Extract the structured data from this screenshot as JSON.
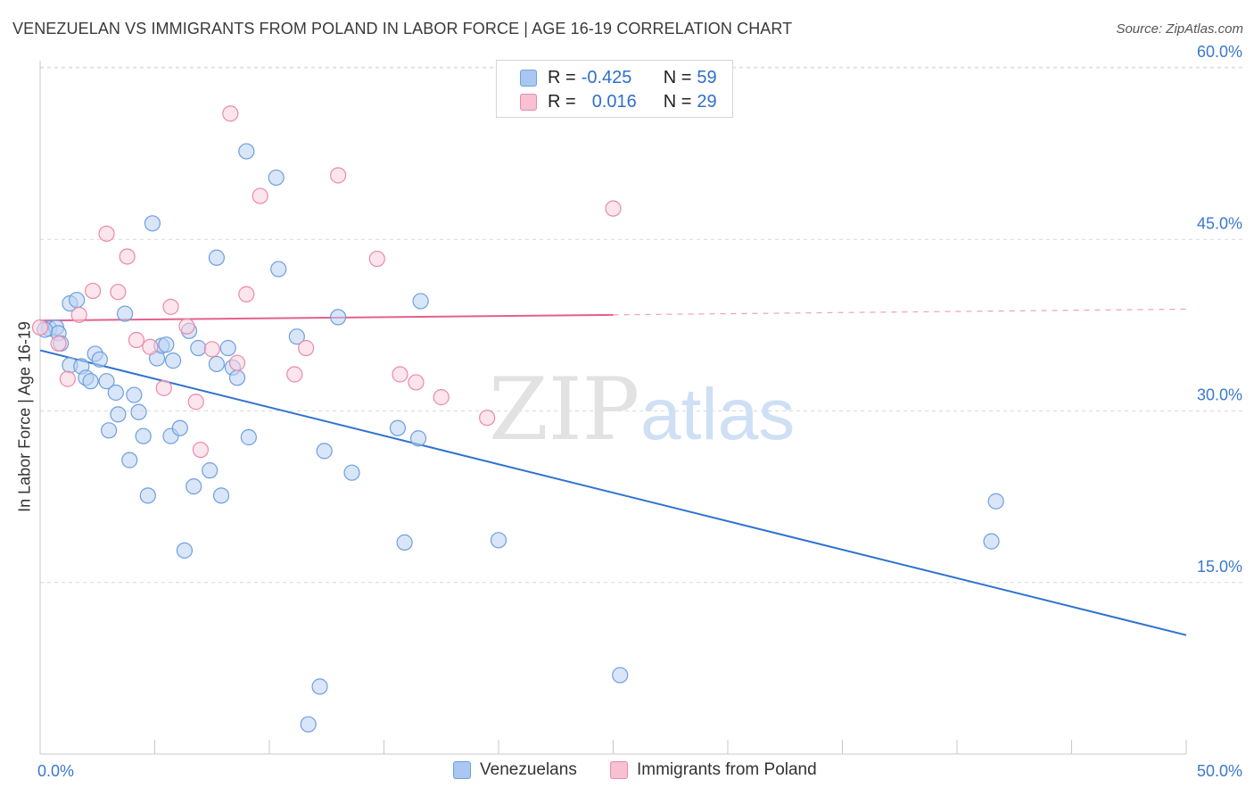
{
  "title": "VENEZUELAN VS IMMIGRANTS FROM POLAND IN LABOR FORCE | AGE 16-19 CORRELATION CHART",
  "source": "Source: ZipAtlas.com",
  "watermark": {
    "zip": "ZIP",
    "atlas": "atlas"
  },
  "legend": {
    "rows": [
      {
        "r_label": "R = ",
        "r_value": "-0.425",
        "n_label": "N = ",
        "n_value": "59",
        "color": "#a9c7f0",
        "border": "#6d9fe0"
      },
      {
        "r_label": "R = ",
        "r_value": "0.016",
        "n_label": "N = ",
        "n_value": "29",
        "color": "#f7c1d2",
        "border": "#e98aa9"
      }
    ]
  },
  "chart_data": {
    "type": "scatter",
    "title": "VENEZUELAN VS IMMIGRANTS FROM POLAND IN LABOR FORCE | AGE 16-19 CORRELATION CHART",
    "xlabel": "",
    "ylabel": "In Labor Force | Age 16-19",
    "xlim": [
      0,
      50
    ],
    "ylim": [
      0,
      60
    ],
    "x_tick_labels": [
      "0.0%",
      "50.0%"
    ],
    "y_tick_labels": [
      "15.0%",
      "30.0%",
      "45.0%",
      "60.0%"
    ],
    "y_ticks": [
      15,
      30,
      45,
      60
    ],
    "grid": true,
    "legend_position": "top-center",
    "series": [
      {
        "name": "Venezuelans",
        "color": "#6d9fe0",
        "fill": "#b9d2f3",
        "trend": {
          "x": [
            0,
            50
          ],
          "y": [
            35.3,
            10.4
          ],
          "dashed_from": null,
          "color": "#2f72d0"
        },
        "points": [
          [
            0.4,
            37.2
          ],
          [
            0.7,
            37.3
          ],
          [
            0.8,
            36.8
          ],
          [
            0.9,
            35.9
          ],
          [
            1.3,
            39.4
          ],
          [
            1.6,
            39.7
          ],
          [
            1.3,
            34.0
          ],
          [
            1.8,
            33.9
          ],
          [
            2.0,
            32.9
          ],
          [
            2.2,
            32.6
          ],
          [
            2.4,
            35.0
          ],
          [
            2.6,
            34.5
          ],
          [
            2.9,
            32.6
          ],
          [
            3.0,
            28.3
          ],
          [
            3.3,
            31.6
          ],
          [
            3.4,
            29.7
          ],
          [
            3.7,
            38.5
          ],
          [
            3.9,
            25.7
          ],
          [
            4.1,
            31.4
          ],
          [
            4.3,
            29.9
          ],
          [
            4.5,
            27.8
          ],
          [
            4.7,
            22.6
          ],
          [
            4.9,
            46.4
          ],
          [
            5.1,
            34.6
          ],
          [
            5.3,
            35.7
          ],
          [
            5.5,
            35.8
          ],
          [
            5.7,
            27.8
          ],
          [
            5.8,
            34.4
          ],
          [
            6.1,
            28.5
          ],
          [
            6.3,
            17.8
          ],
          [
            6.5,
            37.0
          ],
          [
            6.7,
            23.4
          ],
          [
            6.9,
            35.5
          ],
          [
            7.4,
            24.8
          ],
          [
            7.7,
            43.4
          ],
          [
            7.7,
            34.1
          ],
          [
            7.9,
            22.6
          ],
          [
            8.2,
            35.5
          ],
          [
            8.4,
            33.8
          ],
          [
            8.6,
            32.9
          ],
          [
            9.0,
            52.7
          ],
          [
            9.1,
            27.7
          ],
          [
            10.3,
            50.4
          ],
          [
            10.4,
            42.4
          ],
          [
            11.2,
            36.5
          ],
          [
            11.7,
            2.6
          ],
          [
            12.2,
            5.9
          ],
          [
            12.4,
            26.5
          ],
          [
            13.0,
            38.2
          ],
          [
            13.6,
            24.6
          ],
          [
            15.6,
            28.5
          ],
          [
            15.9,
            18.5
          ],
          [
            16.5,
            27.6
          ],
          [
            16.6,
            39.6
          ],
          [
            20.0,
            18.7
          ],
          [
            25.3,
            6.9
          ],
          [
            41.5,
            18.6
          ],
          [
            41.7,
            22.1
          ],
          [
            0.2,
            37.1
          ]
        ]
      },
      {
        "name": "Immigrants from Poland",
        "color": "#e98aa9",
        "fill": "#f9cfdc",
        "trend": {
          "x": [
            0,
            25,
            50
          ],
          "y": [
            37.9,
            38.4,
            38.9
          ],
          "dashed_from": 25,
          "color": "#e5608c"
        },
        "points": [
          [
            0.0,
            37.3
          ],
          [
            0.8,
            35.9
          ],
          [
            1.2,
            32.8
          ],
          [
            1.7,
            38.4
          ],
          [
            2.3,
            40.5
          ],
          [
            2.9,
            45.5
          ],
          [
            3.4,
            40.4
          ],
          [
            3.8,
            43.5
          ],
          [
            4.2,
            36.2
          ],
          [
            4.8,
            35.6
          ],
          [
            5.4,
            32.0
          ],
          [
            5.7,
            39.1
          ],
          [
            6.4,
            37.4
          ],
          [
            6.8,
            30.8
          ],
          [
            7.0,
            26.6
          ],
          [
            7.5,
            35.4
          ],
          [
            8.3,
            56.0
          ],
          [
            8.6,
            34.2
          ],
          [
            9.0,
            40.2
          ],
          [
            9.6,
            48.8
          ],
          [
            11.1,
            33.2
          ],
          [
            11.6,
            35.5
          ],
          [
            13.0,
            50.6
          ],
          [
            14.7,
            43.3
          ],
          [
            15.7,
            33.2
          ],
          [
            16.4,
            32.5
          ],
          [
            17.5,
            31.2
          ],
          [
            19.5,
            29.4
          ],
          [
            25.0,
            47.7
          ]
        ]
      }
    ]
  }
}
